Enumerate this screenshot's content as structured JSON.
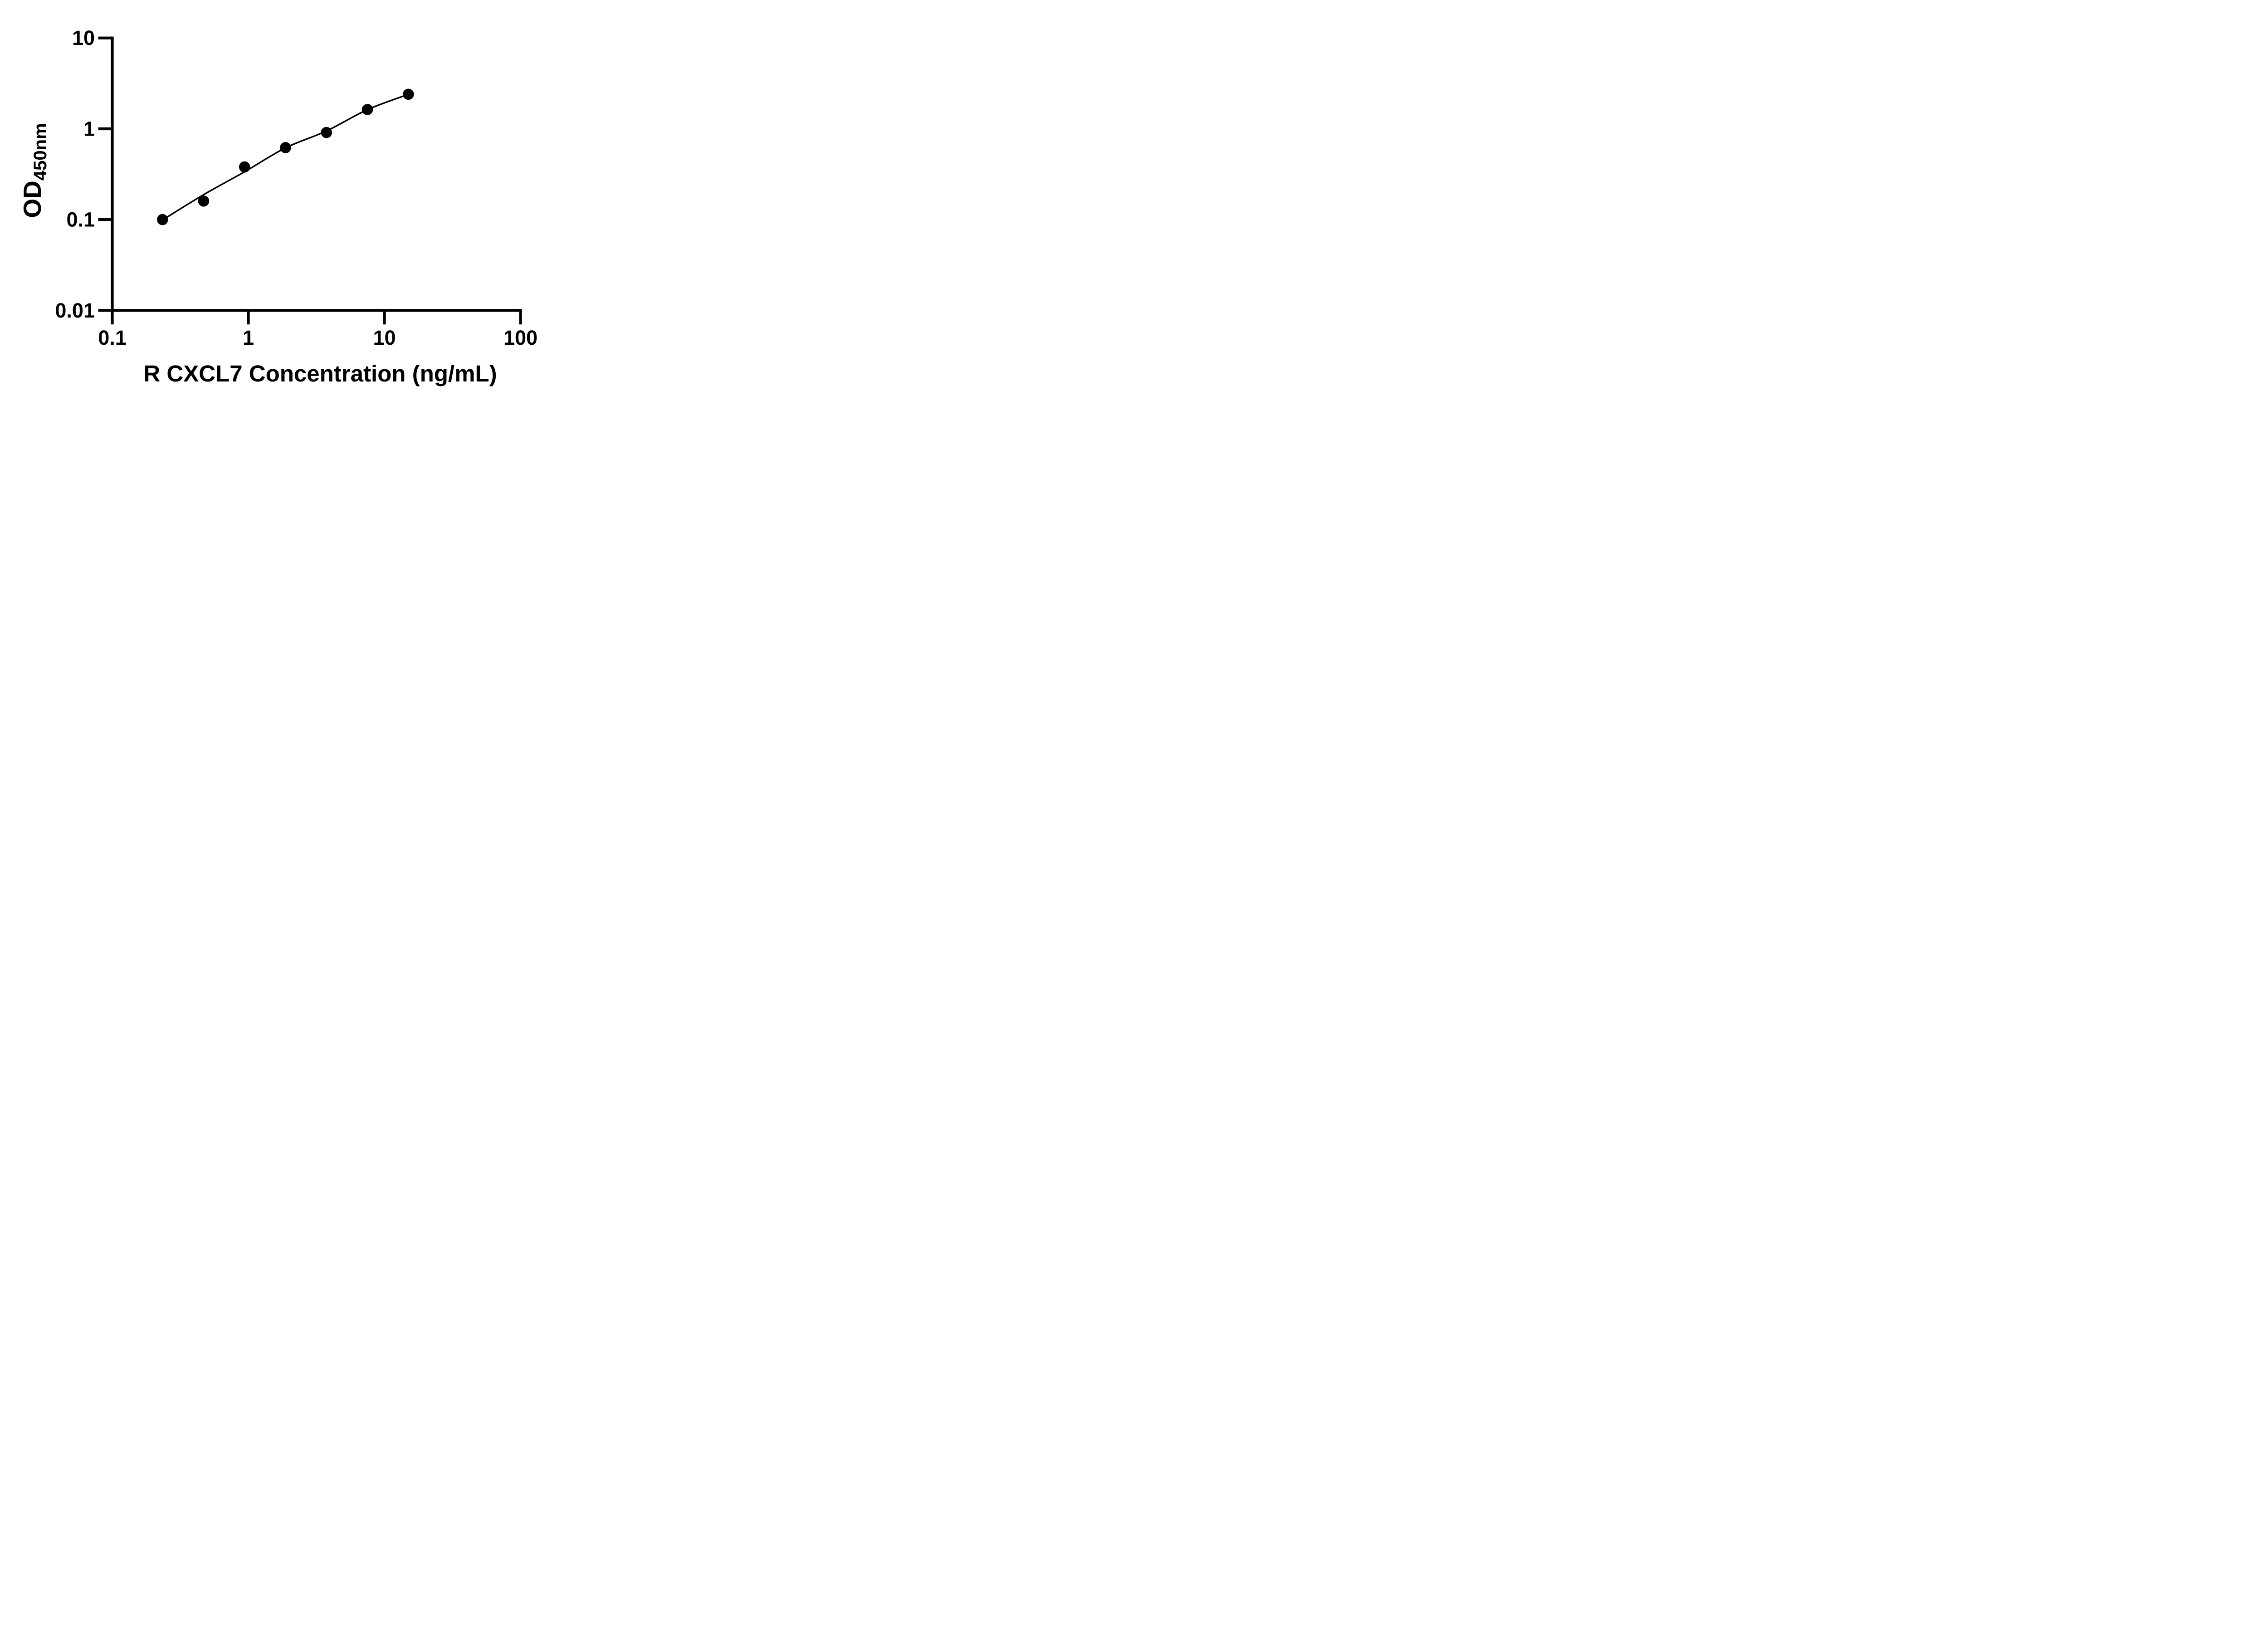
{
  "figure": {
    "background": "#ffffff",
    "ink": "#000000"
  },
  "chart_data": {
    "type": "scatter",
    "title": "",
    "xlabel": "R CXCL7 Concentration (ng/mL)",
    "ylabel_main": "OD",
    "ylabel_sub": "450nm",
    "x_scale": "log",
    "y_scale": "log",
    "xlim": [
      0.1,
      100
    ],
    "ylim": [
      0.01,
      10
    ],
    "grid": "off",
    "legend": "none",
    "x_ticks": [
      {
        "value": 0.1,
        "label": "0.1"
      },
      {
        "value": 1,
        "label": "1"
      },
      {
        "value": 10,
        "label": "10"
      },
      {
        "value": 100,
        "label": "100"
      }
    ],
    "y_ticks": [
      {
        "value": 10,
        "label": "10"
      },
      {
        "value": 1,
        "label": "1"
      },
      {
        "value": 0.1,
        "label": "0.1"
      },
      {
        "value": 0.01,
        "label": "0.01"
      }
    ],
    "series": [
      {
        "name": "standard-curve-points",
        "marker": "filled-circle",
        "color": "#000000",
        "points": [
          {
            "x": 0.234,
            "od": 0.1
          },
          {
            "x": 0.469,
            "od": 0.16
          },
          {
            "x": 0.938,
            "od": 0.38
          },
          {
            "x": 1.875,
            "od": 0.62
          },
          {
            "x": 3.75,
            "od": 0.91
          },
          {
            "x": 7.5,
            "od": 1.63
          },
          {
            "x": 15,
            "od": 2.4
          }
        ]
      }
    ],
    "fit_curve": {
      "name": "4pl-fit-line",
      "color": "#000000",
      "anchors": [
        {
          "x": 0.234,
          "od": 0.099
        },
        {
          "x": 0.469,
          "od": 0.188
        },
        {
          "x": 0.938,
          "od": 0.336
        },
        {
          "x": 1.875,
          "od": 0.616
        },
        {
          "x": 3.75,
          "od": 0.946
        },
        {
          "x": 7.5,
          "od": 1.625
        },
        {
          "x": 15,
          "od": 2.395
        }
      ]
    }
  }
}
